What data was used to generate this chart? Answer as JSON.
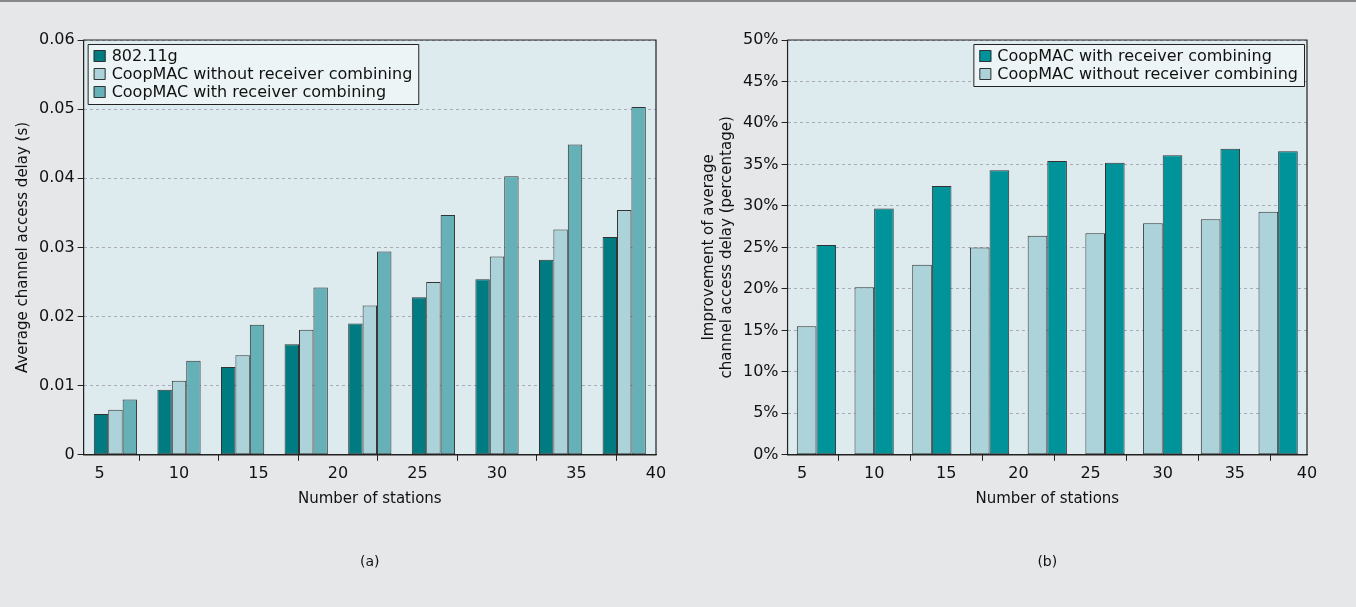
{
  "chart_data": [
    {
      "type": "bar",
      "x": [
        6,
        10,
        14,
        18,
        22,
        26,
        30,
        34,
        38
      ],
      "xlabel": "Number of stations",
      "ylabel": "Average channel access delay (s)",
      "series": [
        {
          "name": "802.11g",
          "color": "#007b82",
          "values": [
            0.0059,
            0.0094,
            0.0127,
            0.016,
            0.019,
            0.0228,
            0.0254,
            0.0282,
            0.0315
          ]
        },
        {
          "name": "CoopMAC without receiver combining",
          "color": "#acd3da",
          "values": [
            0.0065,
            0.0107,
            0.0144,
            0.0181,
            0.0216,
            0.025,
            0.0287,
            0.0326,
            0.0354
          ]
        },
        {
          "name": "CoopMAC with receiver combining",
          "color": "#66b0b8",
          "values": [
            0.008,
            0.0136,
            0.0188,
            0.0242,
            0.0294,
            0.0347,
            0.0403,
            0.0449,
            0.0503
          ]
        }
      ],
      "xlim": [
        4,
        40
      ],
      "xticks": [
        5,
        10,
        15,
        20,
        25,
        30,
        35,
        40
      ],
      "ylim": [
        0,
        0.06
      ],
      "yticks": [
        0,
        0.01,
        0.02,
        0.03,
        0.04,
        0.05,
        0.06
      ],
      "grid": "y",
      "legend": "top left",
      "annotations": [
        "(a)"
      ]
    },
    {
      "type": "bar",
      "x": [
        6,
        10,
        14,
        18,
        22,
        26,
        30,
        34,
        38
      ],
      "xlabel": "Number of stations",
      "ylabel": "Improvement of average\nchannel access delay (percentage)",
      "series": [
        {
          "name": "CoopMAC without receiver combining",
          "color": "#acd3da",
          "values": [
            15.5,
            20.2,
            22.9,
            25.0,
            26.4,
            26.7,
            27.9,
            28.4,
            29.3
          ]
        },
        {
          "name": "CoopMAC with receiver combining",
          "color": "#00939a",
          "values": [
            25.3,
            29.7,
            32.4,
            34.3,
            35.4,
            35.2,
            36.1,
            36.9,
            36.6
          ]
        }
      ],
      "xlim": [
        4,
        40
      ],
      "xticks": [
        5,
        10,
        15,
        20,
        25,
        30,
        35,
        40
      ],
      "ylim": [
        0,
        50
      ],
      "yticks": [
        {
          "value": 0,
          "label": "0%"
        },
        {
          "value": 5,
          "label": "5%"
        },
        {
          "value": 10,
          "label": "10%"
        },
        {
          "value": 15,
          "label": "15%"
        },
        {
          "value": 20,
          "label": "20%"
        },
        {
          "value": 25,
          "label": "25%"
        },
        {
          "value": 30,
          "label": "30%"
        },
        {
          "value": 35,
          "label": "35%"
        },
        {
          "value": 40,
          "label": "40%"
        },
        {
          "value": 45,
          "label": "45%"
        },
        {
          "value": 50,
          "label": "50%"
        }
      ],
      "grid": "y",
      "legend": "top right",
      "annotations": [
        "(b)"
      ]
    }
  ]
}
